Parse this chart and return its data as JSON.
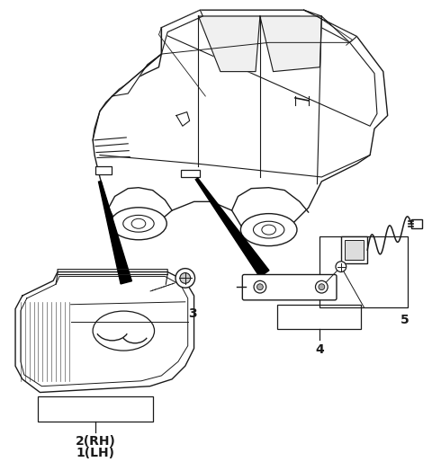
{
  "bg_color": "#ffffff",
  "line_color": "#1a1a1a",
  "label_1": "1",
  "label_1_suffix": "(LH)",
  "label_2": "2",
  "label_2_suffix": "(RH)",
  "label_3": "3",
  "label_4": "4",
  "label_5": "5",
  "font_size": 9,
  "font_size_bold": 10
}
